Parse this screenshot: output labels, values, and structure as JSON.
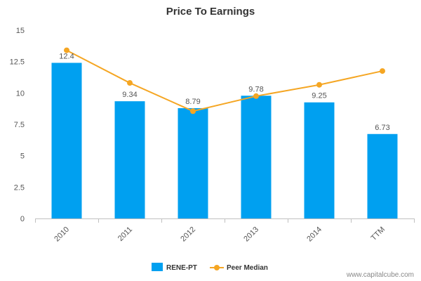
{
  "chart_data": {
    "type": "bar",
    "title": "Price To Earnings",
    "categories": [
      "2010",
      "2011",
      "2012",
      "2013",
      "2014",
      "TTM"
    ],
    "ylim": [
      0,
      15
    ],
    "yticks": [
      0,
      2.5,
      5,
      7.5,
      10,
      12.5,
      15
    ],
    "ytick_labels": [
      "0",
      "2.5",
      "5",
      "7.5",
      "10",
      "12.5",
      "15"
    ],
    "series": [
      {
        "name": "RENE-PT",
        "type": "bar",
        "values": [
          12.4,
          9.34,
          8.79,
          9.78,
          9.25,
          6.73
        ],
        "labels": [
          "12.4",
          "9.34",
          "8.79",
          "9.78",
          "9.25",
          "6.73"
        ],
        "color": "#00a0f0"
      },
      {
        "name": "Peer Median",
        "type": "line",
        "values": [
          13.4,
          10.8,
          8.55,
          9.75,
          10.65,
          11.75
        ],
        "color": "#f5a623"
      }
    ],
    "grid": false,
    "legend": "bottom-center"
  },
  "credit": "www.capitalcube.com"
}
